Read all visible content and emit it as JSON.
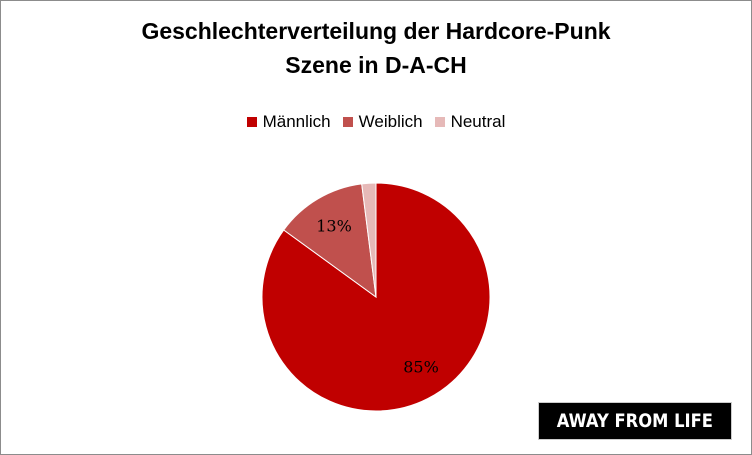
{
  "chart_data": {
    "type": "pie",
    "title_lines": [
      "Geschlechterverteilung der Hardcore-Punk",
      "Szene in D-A-CH"
    ],
    "legend_position": "top",
    "categories": [
      "Männlich",
      "Weiblich",
      "Neutral"
    ],
    "values": [
      85,
      13,
      2
    ],
    "data_labels": [
      "85%",
      "13%",
      ""
    ],
    "colors": [
      "#c00000",
      "#c0504d",
      "#e6b9b8"
    ]
  },
  "watermark": {
    "text": "AWAY FROM LIFE"
  }
}
